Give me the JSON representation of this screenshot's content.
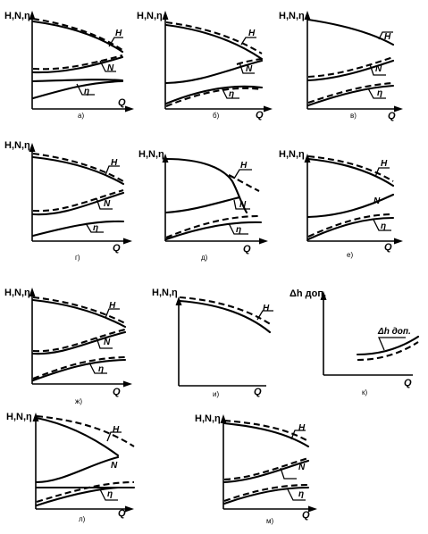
{
  "panels": [
    {
      "id": "a",
      "caption": "а)",
      "y_label": "H,N,η",
      "x_label": "Q",
      "curves": [
        "H",
        "N",
        "η"
      ]
    },
    {
      "id": "b",
      "caption": "б)",
      "y_label": "H,N,η",
      "x_label": "Q",
      "curves": [
        "H",
        "N",
        "η"
      ]
    },
    {
      "id": "v",
      "caption": "в)",
      "y_label": "H,N,η",
      "x_label": "Q",
      "curves": [
        "H",
        "N",
        "η"
      ]
    },
    {
      "id": "g",
      "caption": "г)",
      "y_label": "H,N,η",
      "x_label": "Q",
      "curves": [
        "H",
        "N",
        "η"
      ]
    },
    {
      "id": "d",
      "caption": "д)",
      "y_label": "H,N,η",
      "x_label": "Q",
      "curves": [
        "H",
        "N",
        "η"
      ]
    },
    {
      "id": "e",
      "caption": "е)",
      "y_label": "H,N,η",
      "x_label": "Q",
      "curves": [
        "H",
        "N",
        "η"
      ]
    },
    {
      "id": "zh",
      "caption": "ж)",
      "y_label": "H,N,η",
      "x_label": "Q",
      "curves": [
        "H",
        "N",
        "η"
      ]
    },
    {
      "id": "i",
      "caption": "и)",
      "y_label": "H,N,η",
      "x_label": "Q",
      "curves": [
        "H"
      ]
    },
    {
      "id": "k",
      "caption": "к)",
      "y_label": "Δh доп.",
      "x_label": "Q",
      "curves": [
        "Δh доп."
      ]
    },
    {
      "id": "l",
      "caption": "л)",
      "y_label": "H,N,η",
      "x_label": "Q",
      "curves": [
        "H",
        "N",
        "η"
      ]
    },
    {
      "id": "m",
      "caption": "м)",
      "y_label": "H,N,η",
      "x_label": "Q",
      "curves": [
        "H",
        "N",
        "η"
      ]
    }
  ]
}
